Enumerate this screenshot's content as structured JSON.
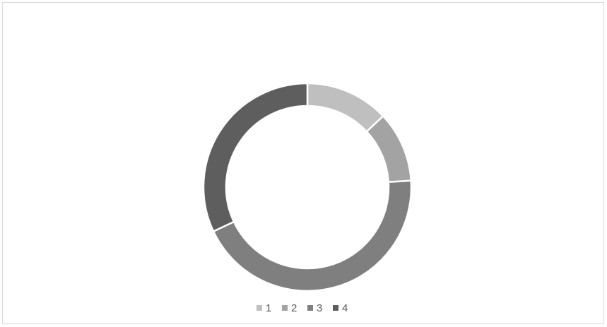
{
  "chart_data": {
    "type": "donut",
    "categories": [
      "1",
      "2",
      "3",
      "4"
    ],
    "values": [
      13,
      11,
      44,
      32
    ],
    "colors": [
      "#bfbfbf",
      "#a3a3a3",
      "#7f7f7f",
      "#5e5e5e"
    ],
    "legend": "bottom"
  }
}
